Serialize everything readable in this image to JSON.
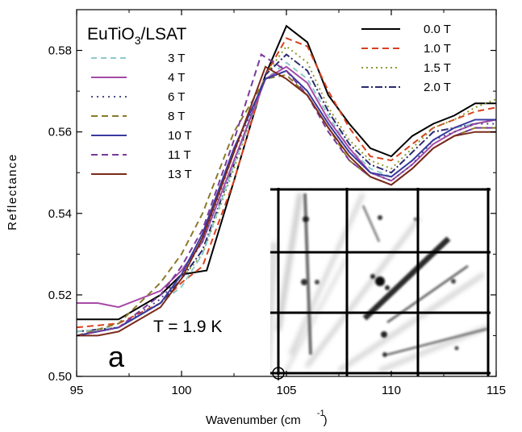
{
  "chart_data": {
    "type": "line",
    "title": "",
    "sample_label": {
      "main": "EuTiO",
      "sub": "3",
      "rest": "/LSAT"
    },
    "temperature_label": "T = 1.9 K",
    "panel_label": "a",
    "xlabel": "Wavenumber (cm",
    "xlabel_sup": "-1",
    "xlabel_close": ")",
    "ylabel": "Reflectance",
    "xlim": [
      95,
      115
    ],
    "ylim": [
      0.5,
      0.59
    ],
    "xticks": [
      "95",
      "100",
      "105",
      "110",
      "115"
    ],
    "yticks": [
      "0.50",
      "0.52",
      "0.54",
      "0.56",
      "0.58"
    ],
    "grid": false,
    "legends": [
      "top-left",
      "top-right"
    ],
    "series": [
      {
        "name": "0.0 T",
        "color": "#000000",
        "dash": "solid",
        "legend": "right",
        "x": [
          95,
          97,
          99,
          100,
          101.2,
          102.5,
          104,
          105,
          106,
          107,
          108,
          109,
          110,
          111,
          112,
          113,
          114,
          115
        ],
        "y": [
          0.514,
          0.514,
          0.52,
          0.525,
          0.526,
          0.548,
          0.574,
          0.586,
          0.582,
          0.569,
          0.562,
          0.556,
          0.554,
          0.559,
          0.562,
          0.564,
          0.567,
          0.567
        ]
      },
      {
        "name": "1.0 T",
        "color": "#d9411e",
        "dash": "8,5",
        "legend": "right",
        "x": [
          95,
          97,
          99,
          100,
          101,
          102.5,
          104,
          105,
          106,
          107,
          108,
          109,
          110,
          111,
          112,
          113,
          114,
          115
        ],
        "y": [
          0.512,
          0.513,
          0.518,
          0.523,
          0.527,
          0.548,
          0.574,
          0.583,
          0.581,
          0.57,
          0.561,
          0.554,
          0.553,
          0.557,
          0.561,
          0.563,
          0.565,
          0.566
        ]
      },
      {
        "name": "1.5 T",
        "color": "#8c9a2a",
        "dash": "2,4",
        "legend": "right",
        "x": [
          95,
          97,
          99,
          100,
          101,
          102.5,
          104,
          105,
          106,
          107,
          108,
          109,
          110,
          111,
          112,
          113,
          114,
          115
        ],
        "y": [
          0.511,
          0.512,
          0.518,
          0.524,
          0.53,
          0.551,
          0.574,
          0.581,
          0.577,
          0.566,
          0.558,
          0.553,
          0.551,
          0.556,
          0.561,
          0.563,
          0.566,
          0.568
        ]
      },
      {
        "name": "2.0 T",
        "color": "#2a2a6e",
        "dash": "9,3,2,3",
        "legend": "right",
        "x": [
          95,
          97,
          99,
          100,
          101,
          102.5,
          104,
          105,
          106,
          107,
          108,
          109,
          110,
          111,
          112,
          113,
          114,
          115
        ],
        "y": [
          0.511,
          0.512,
          0.518,
          0.524,
          0.531,
          0.552,
          0.574,
          0.579,
          0.575,
          0.565,
          0.557,
          0.552,
          0.55,
          0.555,
          0.56,
          0.561,
          0.562,
          0.563
        ]
      },
      {
        "name": "3 T",
        "color": "#8ccacb",
        "dash": "7,5",
        "legend": "left",
        "x": [
          95,
          97,
          99,
          100,
          101,
          102.5,
          104,
          105,
          106,
          107,
          108,
          109,
          110,
          111,
          112,
          113,
          114,
          115
        ],
        "y": [
          0.511,
          0.512,
          0.518,
          0.522,
          0.53,
          0.552,
          0.573,
          0.577,
          0.573,
          0.564,
          0.556,
          0.551,
          0.549,
          0.553,
          0.558,
          0.561,
          0.562,
          0.563
        ]
      },
      {
        "name": "4 T",
        "color": "#a64aa6",
        "dash": "solid",
        "legend": "left",
        "x": [
          95,
          96,
          97,
          99,
          100,
          101,
          102.5,
          104,
          105,
          106,
          107,
          108,
          109,
          110,
          111,
          112,
          113,
          114,
          115
        ],
        "y": [
          0.518,
          0.518,
          0.517,
          0.521,
          0.526,
          0.533,
          0.553,
          0.573,
          0.576,
          0.572,
          0.563,
          0.556,
          0.55,
          0.548,
          0.552,
          0.557,
          0.56,
          0.562,
          0.563
        ]
      },
      {
        "name": "6 T",
        "color": "#4a4a8c",
        "dash": "2,5",
        "legend": "left",
        "x": [
          95,
          97,
          99,
          100,
          101,
          102.5,
          104,
          105,
          106,
          107,
          108,
          109,
          110,
          111,
          112,
          113,
          114,
          115
        ],
        "y": [
          0.51,
          0.512,
          0.519,
          0.525,
          0.533,
          0.555,
          0.573,
          0.575,
          0.57,
          0.562,
          0.555,
          0.55,
          0.548,
          0.552,
          0.558,
          0.56,
          0.562,
          0.562
        ]
      },
      {
        "name": "8 T",
        "color": "#8a7a2a",
        "dash": "8,5",
        "legend": "left",
        "x": [
          95,
          97,
          99,
          100,
          101,
          102.5,
          104,
          105,
          106,
          107,
          108,
          109,
          110,
          111,
          112,
          113,
          114,
          115
        ],
        "y": [
          0.51,
          0.513,
          0.523,
          0.53,
          0.54,
          0.56,
          0.573,
          0.574,
          0.569,
          0.561,
          0.553,
          0.549,
          0.547,
          0.551,
          0.556,
          0.559,
          0.561,
          0.561
        ]
      },
      {
        "name": "10 T",
        "color": "#3a3aa0",
        "dash": "solid",
        "legend": "left",
        "x": [
          95,
          96,
          97,
          99,
          100,
          101,
          102.5,
          104,
          105,
          106,
          107,
          108,
          109,
          110,
          111,
          112,
          113,
          114,
          115
        ],
        "y": [
          0.51,
          0.511,
          0.512,
          0.518,
          0.525,
          0.535,
          0.556,
          0.573,
          0.575,
          0.57,
          0.562,
          0.555,
          0.55,
          0.549,
          0.553,
          0.558,
          0.561,
          0.563,
          0.563
        ]
      },
      {
        "name": "11 T",
        "color": "#7a3a9a",
        "dash": "8,5",
        "legend": "left",
        "x": [
          95,
          97,
          99,
          100,
          101,
          102.5,
          103.8,
          105,
          106,
          107,
          108,
          109,
          110,
          111,
          112,
          113,
          114,
          115
        ],
        "y": [
          0.51,
          0.512,
          0.52,
          0.527,
          0.536,
          0.558,
          0.579,
          0.575,
          0.569,
          0.56,
          0.553,
          0.549,
          0.547,
          0.551,
          0.556,
          0.559,
          0.561,
          0.561
        ]
      },
      {
        "name": "13 T",
        "color": "#7a2a1a",
        "dash": "solid",
        "legend": "left",
        "x": [
          95,
          96,
          97,
          99,
          100,
          101,
          102.5,
          104,
          105,
          106,
          107,
          108,
          109,
          110,
          111,
          112,
          113,
          114,
          115
        ],
        "y": [
          0.51,
          0.51,
          0.511,
          0.517,
          0.524,
          0.534,
          0.555,
          0.576,
          0.573,
          0.569,
          0.561,
          0.554,
          0.549,
          0.547,
          0.551,
          0.556,
          0.559,
          0.56,
          0.56
        ]
      }
    ]
  }
}
